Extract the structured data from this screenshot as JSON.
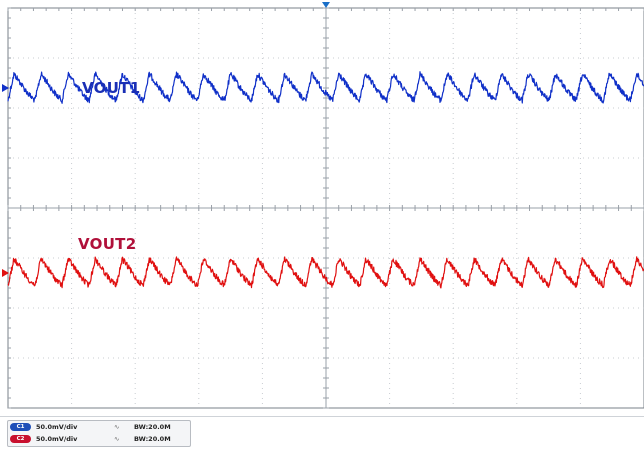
{
  "scope": {
    "background": "#ffffff",
    "grid_divisions": {
      "horizontal": 10,
      "vertical": 8
    },
    "grid_color": "#c9ccd1",
    "frame_color": "#7a8088",
    "trigger_marker_color": "#1a6fc8"
  },
  "traces": [
    {
      "id": "ch1",
      "label": "VOUT1",
      "color": "#1030c8",
      "label_color": "#1a2fb5",
      "baseline_division": 1.6,
      "amplitude_divisions": 0.55,
      "cycles_across_screen": 23.5,
      "noise_level": 0.06
    },
    {
      "id": "ch2",
      "label": "VOUT2",
      "color": "#e01010",
      "label_color": "#b0103a",
      "baseline_division": 5.3,
      "amplitude_divisions": 0.55,
      "cycles_across_screen": 23.5,
      "noise_level": 0.06
    }
  ],
  "status_bar": {
    "channels": [
      {
        "badge": "C1",
        "badge_color": "#1f4fb8",
        "scale": "50.0mV/div",
        "coupling_icon": "ac-coupling-icon",
        "coupling_glyph": "∿",
        "bandwidth": "BW:20.0M"
      },
      {
        "badge": "C2",
        "badge_color": "#c8102e",
        "scale": "50.0mV/div",
        "coupling_icon": "ac-coupling-icon",
        "coupling_glyph": "∿",
        "bandwidth": "BW:20.0M"
      }
    ]
  }
}
